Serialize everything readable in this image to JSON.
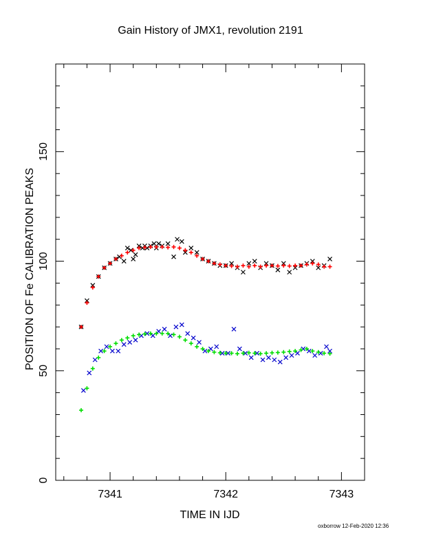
{
  "chart_data": {
    "type": "scatter",
    "title": "Gain History of JMX1, revolution 2191",
    "xlabel": "TIME IN IJD",
    "ylabel": "POSITION OF Fe CALIBRATION PEAKS",
    "xlim": [
      7340.53,
      7343.2
    ],
    "ylim": [
      0,
      190
    ],
    "xticks": [
      7341,
      7342,
      7343
    ],
    "yticks": [
      0,
      50,
      100,
      150
    ],
    "grid": false,
    "series": [
      {
        "marker": "x",
        "color": "#000000",
        "x": [
          7340.75,
          7340.8,
          7340.85,
          7340.9,
          7340.95,
          7341.0,
          7341.05,
          7341.08,
          7341.12,
          7341.15,
          7341.18,
          7341.2,
          7341.22,
          7341.25,
          7341.28,
          7341.3,
          7341.32,
          7341.35,
          7341.38,
          7341.4,
          7341.42,
          7341.45,
          7341.5,
          7341.55,
          7341.58,
          7341.62,
          7341.65,
          7341.7,
          7341.75,
          7341.8,
          7341.85,
          7341.9,
          7341.95,
          7342.0,
          7342.05,
          7342.1,
          7342.15,
          7342.2,
          7342.25,
          7342.3,
          7342.35,
          7342.4,
          7342.45,
          7342.5,
          7342.55,
          7342.6,
          7342.65,
          7342.7,
          7342.75,
          7342.8,
          7342.85,
          7342.9
        ],
        "y": [
          70,
          82,
          89,
          93,
          97,
          99,
          101,
          102,
          100,
          106,
          105,
          101,
          103,
          107,
          106,
          107,
          106,
          107,
          108,
          106,
          108,
          107,
          108,
          102,
          110,
          109,
          104,
          106,
          104,
          101,
          100,
          99,
          98,
          98,
          99,
          97,
          95,
          99,
          100,
          97,
          99,
          98,
          96,
          99,
          95,
          97,
          98,
          99,
          100,
          97,
          98,
          101
        ]
      },
      {
        "marker": "+",
        "color": "#ff0000",
        "x": [
          7340.75,
          7340.8,
          7340.85,
          7340.9,
          7340.95,
          7341.0,
          7341.05,
          7341.1,
          7341.15,
          7341.2,
          7341.25,
          7341.3,
          7341.35,
          7341.4,
          7341.45,
          7341.5,
          7341.55,
          7341.6,
          7341.65,
          7341.7,
          7341.75,
          7341.8,
          7341.85,
          7341.9,
          7341.95,
          7342.0,
          7342.05,
          7342.1,
          7342.15,
          7342.2,
          7342.25,
          7342.3,
          7342.35,
          7342.4,
          7342.45,
          7342.5,
          7342.55,
          7342.6,
          7342.65,
          7342.7,
          7342.75,
          7342.8,
          7342.85,
          7342.9
        ],
        "y": [
          70,
          81,
          88,
          93,
          97,
          99,
          101,
          102.5,
          104,
          105,
          106,
          106.3,
          106.5,
          106.5,
          106.5,
          106.3,
          106.5,
          106,
          105,
          104,
          102.5,
          101,
          100,
          99,
          98.5,
          98,
          97.8,
          97.5,
          98,
          97.5,
          98,
          97.5,
          98,
          98,
          97.8,
          98,
          97.8,
          98,
          98,
          98.5,
          99,
          98.5,
          97.5,
          97.5
        ]
      },
      {
        "marker": "x",
        "color": "#0000cc",
        "x": [
          7340.77,
          7340.82,
          7340.87,
          7340.92,
          7340.97,
          7341.02,
          7341.07,
          7341.12,
          7341.17,
          7341.22,
          7341.27,
          7341.32,
          7341.37,
          7341.42,
          7341.47,
          7341.52,
          7341.57,
          7341.62,
          7341.67,
          7341.72,
          7341.77,
          7341.82,
          7341.87,
          7341.92,
          7341.97,
          7342.02,
          7342.07,
          7342.12,
          7342.17,
          7342.22,
          7342.27,
          7342.32,
          7342.37,
          7342.42,
          7342.47,
          7342.52,
          7342.57,
          7342.62,
          7342.67,
          7342.72,
          7342.77,
          7342.82,
          7342.87,
          7342.9
        ],
        "y": [
          41,
          49,
          55,
          59,
          61,
          59,
          59,
          62,
          63,
          64,
          66,
          67,
          66,
          68,
          69,
          66,
          70,
          71,
          67,
          65,
          63,
          59,
          60,
          61,
          58,
          58,
          69,
          60,
          58,
          56,
          58,
          55,
          56,
          55,
          54,
          56,
          57,
          58,
          60,
          59,
          57,
          58,
          61,
          59
        ]
      },
      {
        "marker": "+",
        "color": "#00dd00",
        "x": [
          7340.75,
          7340.8,
          7340.85,
          7340.9,
          7340.95,
          7341.0,
          7341.05,
          7341.1,
          7341.15,
          7341.2,
          7341.25,
          7341.3,
          7341.35,
          7341.4,
          7341.45,
          7341.5,
          7341.55,
          7341.6,
          7341.65,
          7341.7,
          7341.75,
          7341.8,
          7341.85,
          7341.9,
          7341.95,
          7342.0,
          7342.05,
          7342.1,
          7342.15,
          7342.2,
          7342.25,
          7342.3,
          7342.35,
          7342.4,
          7342.45,
          7342.5,
          7342.55,
          7342.6,
          7342.65,
          7342.7,
          7342.75,
          7342.8,
          7342.85,
          7342.9
        ],
        "y": [
          32,
          42,
          51,
          56,
          59,
          61,
          62.5,
          64,
          65,
          66,
          66.5,
          66.8,
          67,
          67,
          67,
          67,
          66.5,
          65.5,
          64,
          62.5,
          61,
          60,
          59,
          58.5,
          58.2,
          58,
          58,
          57.8,
          58,
          58.2,
          58,
          57.8,
          58,
          58.2,
          58.3,
          58.5,
          58.8,
          59,
          59.5,
          60,
          59,
          58.5,
          58,
          57.8
        ]
      }
    ]
  },
  "footer": {
    "text": "oxborrow 12-Feb-2020 12:36"
  }
}
